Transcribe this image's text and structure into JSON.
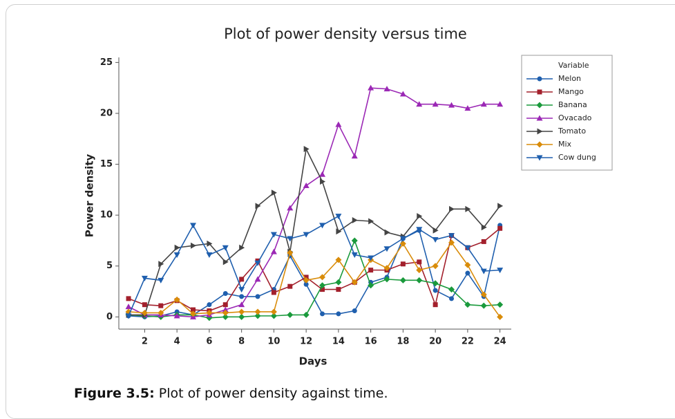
{
  "chart_data": {
    "type": "line",
    "title": "Plot of power density versus time",
    "x_label": "Days",
    "y_label": "Power density",
    "legend_title": "Variable",
    "legend": "outside-right",
    "x": [
      1,
      2,
      3,
      4,
      5,
      6,
      7,
      8,
      9,
      10,
      11,
      12,
      13,
      14,
      15,
      16,
      17,
      18,
      19,
      20,
      21,
      22,
      23,
      24
    ],
    "xlim": [
      0.4,
      24.7
    ],
    "xticks": [
      2,
      4,
      6,
      8,
      10,
      12,
      14,
      16,
      18,
      20,
      22,
      24
    ],
    "ylim": [
      -1.2,
      25.5
    ],
    "yticks": [
      0,
      5,
      10,
      15,
      20,
      25
    ],
    "series": [
      {
        "name": "Melon",
        "color": "#1f5fae",
        "marker": "circle",
        "values": [
          0.1,
          0,
          0.1,
          0.5,
          0.2,
          1.2,
          2.3,
          2.0,
          2.0,
          2.7,
          6.0,
          3.2,
          0.3,
          0.3,
          0.6,
          3.4,
          3.9,
          7.7,
          8.5,
          2.6,
          1.8,
          4.3,
          2.0,
          9.0
        ]
      },
      {
        "name": "Mango",
        "color": "#a3202c",
        "marker": "square",
        "values": [
          1.8,
          1.2,
          1.1,
          1.6,
          0.7,
          0.6,
          1.2,
          3.7,
          5.5,
          2.4,
          3.0,
          3.9,
          2.7,
          2.7,
          3.4,
          4.6,
          4.6,
          5.2,
          5.4,
          1.2,
          8.0,
          6.8,
          7.4,
          8.7
        ]
      },
      {
        "name": "Banana",
        "color": "#1a9a3c",
        "marker": "diamond",
        "values": [
          0.2,
          0.1,
          0,
          0.2,
          0.2,
          -0.1,
          0,
          0,
          0.1,
          0.1,
          0.2,
          0.2,
          3.1,
          3.4,
          7.5,
          3.1,
          3.7,
          3.6,
          3.6,
          3.3,
          2.7,
          1.2,
          1.1,
          1.2
        ]
      },
      {
        "name": "Ovacado",
        "color": "#9b28b5",
        "marker": "triangle-up",
        "values": [
          1.0,
          0.2,
          0.2,
          0.1,
          0,
          0.2,
          0.7,
          1.2,
          3.7,
          6.4,
          10.7,
          12.9,
          14.0,
          18.9,
          15.8,
          22.5,
          22.4,
          21.9,
          20.9,
          20.9,
          20.8,
          20.5,
          20.9,
          20.9
        ]
      },
      {
        "name": "Tomato",
        "color": "#444444",
        "marker": "triangle-right",
        "values": [
          0.2,
          0.2,
          5.2,
          6.8,
          7.0,
          7.2,
          5.4,
          6.8,
          10.9,
          12.2,
          6.4,
          16.5,
          13.3,
          8.4,
          9.5,
          9.4,
          8.3,
          7.9,
          9.9,
          8.5,
          10.6,
          10.6,
          8.8,
          10.9
        ]
      },
      {
        "name": "Mix",
        "color": "#d98c0a",
        "marker": "diamond",
        "values": [
          0.5,
          0.4,
          0.4,
          1.7,
          0.3,
          0.4,
          0.4,
          0.5,
          0.5,
          0.5,
          6.3,
          3.6,
          3.9,
          5.6,
          3.4,
          5.6,
          4.8,
          7.2,
          4.6,
          5.0,
          7.3,
          5.1,
          2.2,
          0
        ]
      },
      {
        "name": "Cow dung",
        "color": "#1f5fae",
        "marker": "triangle-down",
        "values": [
          0.1,
          3.8,
          3.6,
          6.1,
          9.0,
          6.1,
          6.8,
          2.7,
          5.3,
          8.1,
          7.7,
          8.1,
          9.0,
          9.9,
          6.1,
          5.8,
          6.7,
          7.7,
          8.6,
          7.6,
          8.0,
          6.8,
          4.5,
          4.6
        ]
      }
    ]
  },
  "caption": {
    "label": "Figure 3.5:",
    "text": "Plot of power density against time."
  }
}
